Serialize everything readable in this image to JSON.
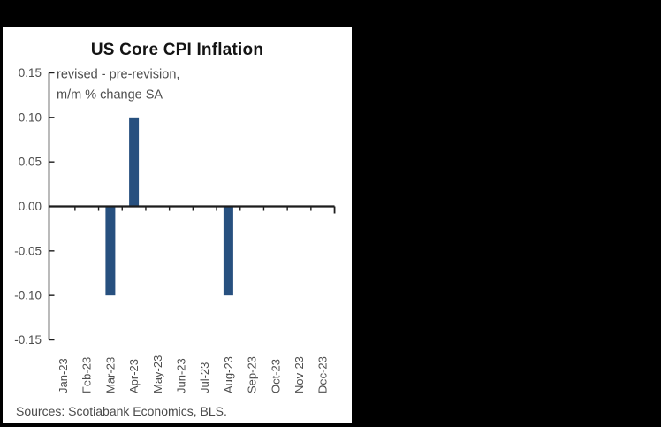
{
  "window": {
    "background_color": "#000000",
    "panel_background_color": "#ffffff"
  },
  "chart_data": {
    "type": "bar",
    "title": "US Core CPI Inflation",
    "annotation_lines": [
      "revised - pre-revision,",
      "m/m % change SA"
    ],
    "categories": [
      "Jan-23",
      "Feb-23",
      "Mar-23",
      "Apr-23",
      "May-23",
      "Jun-23",
      "Jul-23",
      "Aug-23",
      "Sep-23",
      "Oct-23",
      "Nov-23",
      "Dec-23"
    ],
    "values": [
      0,
      0,
      -0.1,
      0.1,
      0,
      0,
      0,
      -0.1,
      0,
      0,
      0,
      0
    ],
    "y_tick_values": [
      0.15,
      0.1,
      0.05,
      0.0,
      -0.05,
      -0.1,
      -0.15
    ],
    "y_tick_labels": [
      "0.15",
      "0.10",
      "0.05",
      "0.00",
      "-0.05",
      "-0.10",
      "-0.15"
    ],
    "ylim": [
      -0.15,
      0.15
    ],
    "xlabel": "",
    "ylabel": "",
    "grid": false,
    "legend_position": "none",
    "bar_color": "#27507F",
    "axis_color": "#1c1c1c",
    "label_color": "#4d4d4d"
  },
  "source": {
    "text": "Sources: Scotiabank Economics, BLS."
  }
}
